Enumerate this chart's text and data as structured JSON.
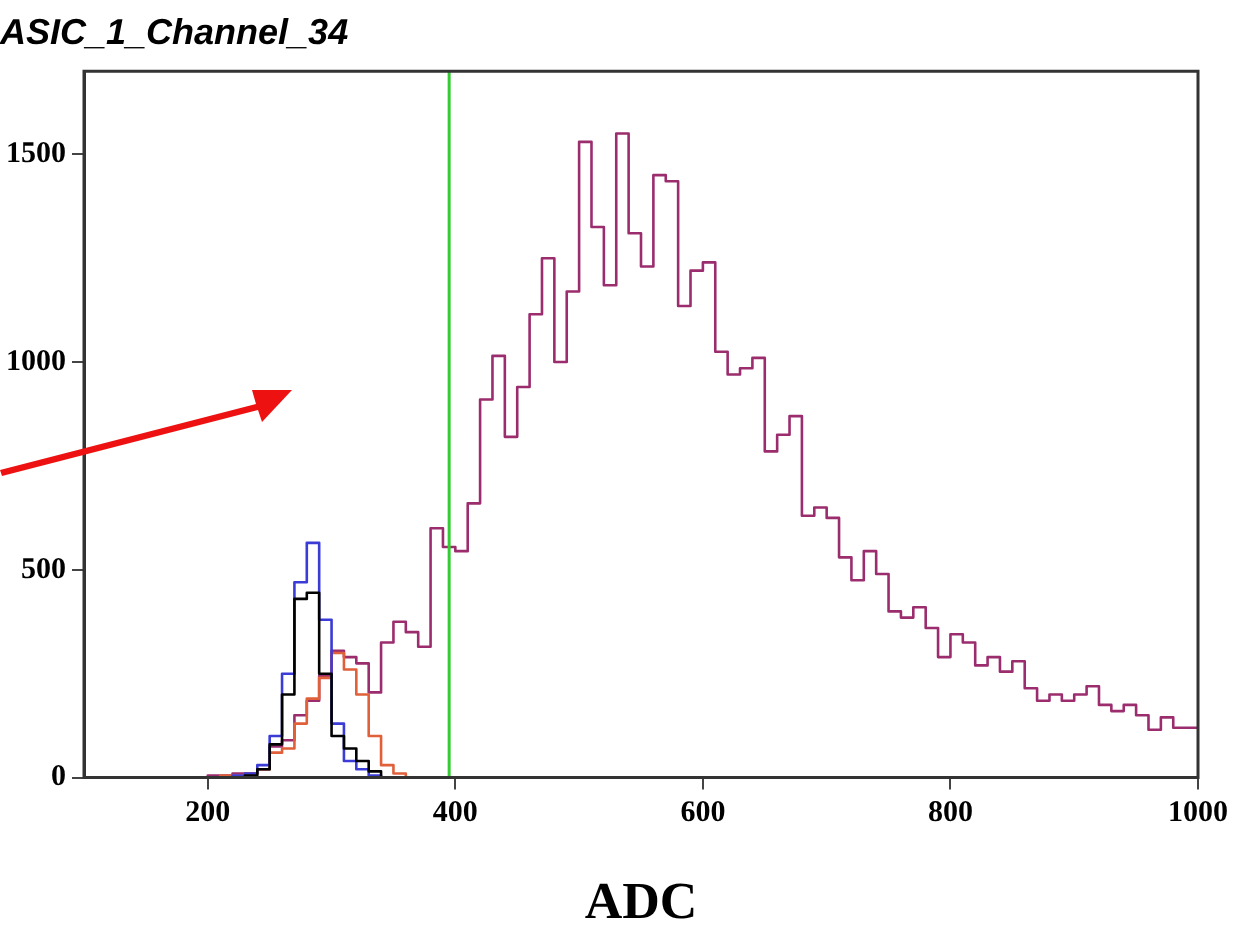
{
  "chart_data": {
    "type": "histogram",
    "title": "ASIC_1_Channel_34",
    "xlabel": "ADC",
    "bins": [
      100,
      110,
      120,
      130,
      140,
      150,
      160,
      170,
      180,
      190,
      200,
      210,
      220,
      230,
      240,
      250,
      260,
      270,
      280,
      290,
      300,
      310,
      320,
      330,
      340,
      350,
      360,
      370,
      380,
      390,
      400,
      410,
      420,
      430,
      440,
      450,
      460,
      470,
      480,
      490,
      500,
      510,
      520,
      530,
      540,
      550,
      560,
      570,
      580,
      590,
      600,
      610,
      620,
      630,
      640,
      650,
      660,
      670,
      680,
      690,
      700,
      710,
      720,
      730,
      740,
      750,
      760,
      770,
      780,
      790,
      800,
      810,
      820,
      830,
      840,
      850,
      860,
      870,
      880,
      890,
      900,
      910,
      920,
      930,
      940,
      950,
      960,
      970,
      980,
      990,
      1000
    ],
    "series": [
      {
        "color": "#000000",
        "values": [
          0,
          0,
          0,
          0,
          0,
          0,
          0,
          0,
          0,
          0,
          0,
          0,
          0,
          5,
          20,
          80,
          200,
          430,
          445,
          250,
          100,
          70,
          40,
          15,
          0,
          0,
          0,
          0,
          0,
          0,
          0,
          0,
          0,
          0,
          0,
          0,
          0,
          0,
          0,
          0,
          0,
          0,
          0,
          0,
          0,
          0,
          0,
          0,
          0,
          0,
          0,
          0,
          0,
          0,
          0,
          0,
          0,
          0,
          0,
          0,
          0,
          0,
          0,
          0,
          0,
          0,
          0,
          0,
          0,
          0,
          0,
          0,
          0,
          0,
          0,
          0,
          0,
          0,
          0,
          0,
          0,
          0,
          0,
          0,
          0,
          0,
          0,
          0,
          0,
          0
        ]
      },
      {
        "color": "#3b3bd6",
        "values": [
          0,
          0,
          0,
          0,
          0,
          0,
          0,
          0,
          0,
          0,
          0,
          0,
          5,
          10,
          30,
          100,
          250,
          470,
          565,
          380,
          130,
          40,
          20,
          5,
          0,
          0,
          0,
          0,
          0,
          0,
          0,
          0,
          0,
          0,
          0,
          0,
          0,
          0,
          0,
          0,
          0,
          0,
          0,
          0,
          0,
          0,
          0,
          0,
          0,
          0,
          0,
          0,
          0,
          0,
          0,
          0,
          0,
          0,
          0,
          0,
          0,
          0,
          0,
          0,
          0,
          0,
          0,
          0,
          0,
          0,
          0,
          0,
          0,
          0,
          0,
          0,
          0,
          0,
          0,
          0,
          0,
          0,
          0,
          0,
          0,
          0,
          0,
          0,
          0,
          0
        ]
      },
      {
        "color": "#e0603a",
        "values": [
          0,
          0,
          0,
          0,
          0,
          0,
          0,
          0,
          0,
          0,
          0,
          5,
          5,
          10,
          20,
          60,
          70,
          130,
          190,
          240,
          300,
          260,
          200,
          100,
          30,
          10,
          0,
          0,
          0,
          0,
          0,
          0,
          0,
          0,
          0,
          0,
          0,
          0,
          0,
          0,
          0,
          0,
          0,
          0,
          0,
          0,
          0,
          0,
          0,
          0,
          0,
          0,
          0,
          0,
          0,
          0,
          0,
          0,
          0,
          0,
          0,
          0,
          0,
          0,
          0,
          0,
          0,
          0,
          0,
          0,
          0,
          0,
          0,
          0,
          0,
          0,
          0,
          0,
          0,
          0,
          0,
          0,
          0,
          0,
          0,
          0,
          0,
          0,
          0,
          0
        ]
      },
      {
        "color": "#9b2d6e",
        "values": [
          0,
          0,
          0,
          0,
          0,
          0,
          0,
          0,
          0,
          0,
          5,
          5,
          10,
          10,
          20,
          75,
          90,
          150,
          185,
          245,
          305,
          290,
          275,
          205,
          325,
          375,
          350,
          315,
          600,
          555,
          545,
          660,
          910,
          1015,
          820,
          940,
          1115,
          1250,
          1000,
          1170,
          1530,
          1325,
          1185,
          1550,
          1310,
          1230,
          1450,
          1435,
          1135,
          1220,
          1240,
          1025,
          970,
          985,
          1010,
          785,
          825,
          870,
          630,
          650,
          625,
          530,
          475,
          545,
          490,
          400,
          385,
          410,
          360,
          290,
          345,
          325,
          270,
          290,
          255,
          280,
          215,
          185,
          200,
          185,
          200,
          220,
          175,
          160,
          175,
          150,
          115,
          145,
          120,
          120
        ]
      }
    ],
    "ref_lines": [
      {
        "axis": "x",
        "value": 395,
        "color": "#33cc33"
      }
    ],
    "xlim": [
      100,
      1000
    ],
    "xticks": [
      200,
      400,
      600,
      800,
      1000
    ],
    "ylim": [
      0,
      1700
    ],
    "yticks": [
      0,
      500,
      1000,
      1500
    ],
    "grid": false,
    "legend": false
  }
}
